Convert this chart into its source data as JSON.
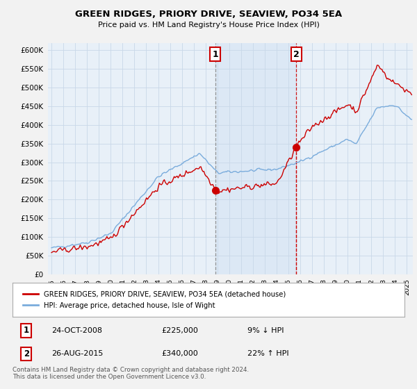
{
  "title": "GREEN RIDGES, PRIORY DRIVE, SEAVIEW, PO34 5EA",
  "subtitle": "Price paid vs. HM Land Registry's House Price Index (HPI)",
  "ylabel_ticks": [
    "£0",
    "£50K",
    "£100K",
    "£150K",
    "£200K",
    "£250K",
    "£300K",
    "£350K",
    "£400K",
    "£450K",
    "£500K",
    "£550K",
    "£600K"
  ],
  "ytick_values": [
    0,
    50000,
    100000,
    150000,
    200000,
    250000,
    300000,
    350000,
    400000,
    450000,
    500000,
    550000,
    600000
  ],
  "ylim": [
    0,
    620000
  ],
  "xlim_start": 1994.7,
  "xlim_end": 2025.5,
  "red_line_color": "#cc0000",
  "blue_line_color": "#7aacdc",
  "shaded_region_color": "#dce8f5",
  "background_color": "#e8f0f8",
  "grid_color": "#c8d8e8",
  "marker1_x": 2008.82,
  "marker1_y": 225000,
  "marker2_x": 2015.65,
  "marker2_y": 340000,
  "marker1_label": "1",
  "marker2_label": "2",
  "sale1_date": "24-OCT-2008",
  "sale1_price": "£225,000",
  "sale1_hpi": "9% ↓ HPI",
  "sale2_date": "26-AUG-2015",
  "sale2_price": "£340,000",
  "sale2_hpi": "22% ↑ HPI",
  "legend_label1": "GREEN RIDGES, PRIORY DRIVE, SEAVIEW, PO34 5EA (detached house)",
  "legend_label2": "HPI: Average price, detached house, Isle of Wight",
  "footer": "Contains HM Land Registry data © Crown copyright and database right 2024.\nThis data is licensed under the Open Government Licence v3.0.",
  "xtick_years": [
    1995,
    1996,
    1997,
    1998,
    1999,
    2000,
    2001,
    2002,
    2003,
    2004,
    2005,
    2006,
    2007,
    2008,
    2009,
    2010,
    2011,
    2012,
    2013,
    2014,
    2015,
    2016,
    2017,
    2018,
    2019,
    2020,
    2021,
    2022,
    2023,
    2024,
    2025
  ]
}
